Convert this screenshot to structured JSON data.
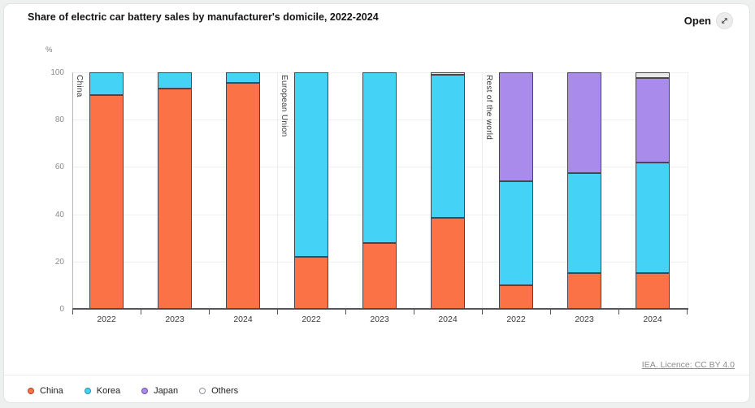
{
  "header": {
    "title": "Share of electric car battery sales by manufacturer's domicile, 2022-2024",
    "open_button": "Open"
  },
  "axis": {
    "unit_label": "%"
  },
  "footer": {
    "licence_link": "IEA. Licence: CC BY 4.0"
  },
  "legend": {
    "items": [
      {
        "label": "China",
        "color": "#fb7246",
        "border": "#b3402a"
      },
      {
        "label": "Korea",
        "color": "#45d2f7",
        "border": "#2e8fb0"
      },
      {
        "label": "Japan",
        "color": "#a88bea",
        "border": "#6f55a8"
      },
      {
        "label": "Others",
        "color": "#ffffff",
        "border": "#8f8f9b"
      }
    ]
  },
  "chart_data": {
    "type": "bar",
    "variant": "stacked",
    "title": "Share of electric car battery sales by manufacturer's domicile, 2022-2024",
    "ylabel": "%",
    "ylim": [
      0,
      100
    ],
    "y_ticks": [
      0,
      20,
      40,
      60,
      80,
      100
    ],
    "grid": true,
    "legend_position": "bottom",
    "series_order": [
      "China",
      "Korea",
      "Japan",
      "Others"
    ],
    "series_colors": {
      "China": "#fb7246",
      "Korea": "#45d2f7",
      "Japan": "#a88bea",
      "Others": "#e8e8e8"
    },
    "groups": [
      {
        "label": "China",
        "bars": [
          {
            "year": "2022",
            "values": {
              "China": 90.5,
              "Korea": 9.5,
              "Japan": 0,
              "Others": 0
            }
          },
          {
            "year": "2023",
            "values": {
              "China": 93,
              "Korea": 7,
              "Japan": 0,
              "Others": 0
            }
          },
          {
            "year": "2024",
            "values": {
              "China": 95.5,
              "Korea": 4.5,
              "Japan": 0,
              "Others": 0
            }
          }
        ]
      },
      {
        "label": "European Union",
        "bars": [
          {
            "year": "2022",
            "values": {
              "China": 22,
              "Korea": 78,
              "Japan": 0,
              "Others": 0
            }
          },
          {
            "year": "2023",
            "values": {
              "China": 28,
              "Korea": 72,
              "Japan": 0,
              "Others": 0
            }
          },
          {
            "year": "2024",
            "values": {
              "China": 38.5,
              "Korea": 60.5,
              "Japan": 0,
              "Others": 1
            }
          }
        ]
      },
      {
        "label": "Rest of the world",
        "bars": [
          {
            "year": "2022",
            "values": {
              "China": 10,
              "Korea": 44,
              "Japan": 46,
              "Others": 0
            }
          },
          {
            "year": "2023",
            "values": {
              "China": 15,
              "Korea": 42.5,
              "Japan": 42.5,
              "Others": 0
            }
          },
          {
            "year": "2024",
            "values": {
              "China": 15,
              "Korea": 47,
              "Japan": 35.5,
              "Others": 2.5
            }
          }
        ]
      }
    ]
  }
}
